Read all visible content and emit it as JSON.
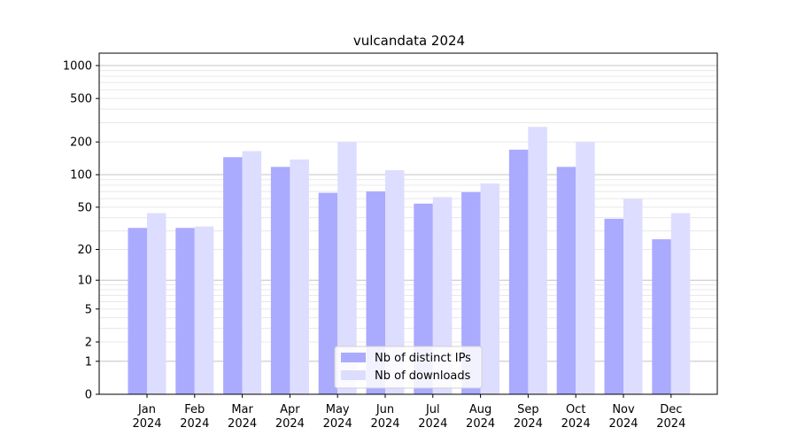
{
  "chart_data": {
    "type": "bar",
    "title": "vulcandata 2024",
    "xlabel": "",
    "ylabel": "",
    "y_scale": "symlog",
    "ylim": [
      0,
      1300
    ],
    "y_ticks": [
      0,
      1,
      2,
      5,
      10,
      20,
      50,
      100,
      200,
      500,
      1000
    ],
    "grid": true,
    "legend_position": "bottom-center",
    "categories": [
      [
        "Jan",
        "2024"
      ],
      [
        "Feb",
        "2024"
      ],
      [
        "Mar",
        "2024"
      ],
      [
        "Apr",
        "2024"
      ],
      [
        "May",
        "2024"
      ],
      [
        "Jun",
        "2024"
      ],
      [
        "Jul",
        "2024"
      ],
      [
        "Aug",
        "2024"
      ],
      [
        "Sep",
        "2024"
      ],
      [
        "Oct",
        "2024"
      ],
      [
        "Nov",
        "2024"
      ],
      [
        "Dec",
        "2024"
      ]
    ],
    "series": [
      {
        "name": "Nb of distinct IPs",
        "color": "#aaaaff",
        "values": [
          32,
          32,
          145,
          118,
          68,
          70,
          54,
          69,
          170,
          118,
          39,
          25
        ]
      },
      {
        "name": "Nb of downloads",
        "color": "#ddddff",
        "values": [
          44,
          33,
          165,
          138,
          200,
          110,
          62,
          83,
          275,
          200,
          60,
          44
        ]
      }
    ]
  }
}
